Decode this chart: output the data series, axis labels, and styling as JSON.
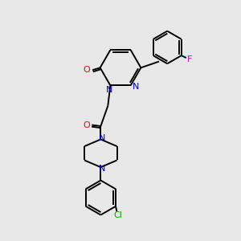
{
  "bg_color": "#e8e8e8",
  "bond_color": "#000000",
  "N_color": "#0000cc",
  "O_color": "#ff0000",
  "F_color": "#cc00cc",
  "Cl_color": "#00aa00",
  "line_width": 1.4,
  "figsize": [
    3.0,
    3.0
  ],
  "dpi": 100,
  "xlim": [
    0,
    10
  ],
  "ylim": [
    0,
    10
  ]
}
